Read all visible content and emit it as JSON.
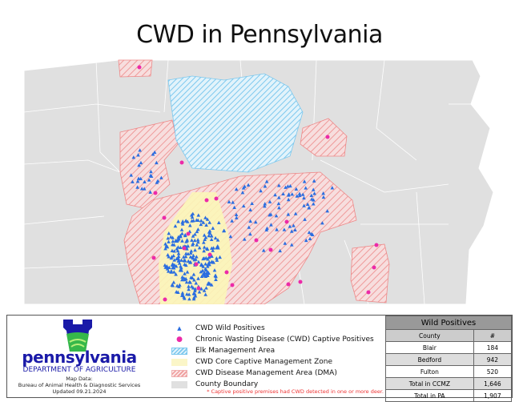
{
  "title": "CWD in Pennsylvania",
  "colors": {
    "state": "#e0e0e0",
    "county_border": "#ffffff",
    "dma": "#f4a6a6",
    "elk": "#88d0f0",
    "ccmz": "#fbf6b8",
    "wild": "#2a6de0",
    "captive": "#ec2aa8"
  },
  "logo": {
    "name": "pennsylvania",
    "dept": "DEPARTMENT OF AGRICULTURE",
    "map_data": "Map Data:",
    "source": "Bureau of Animal Health & Diagnostic Services",
    "updated": "Updated 09.21.2024"
  },
  "legend": [
    {
      "label": "CWD Wild Positives",
      "icon": "triangle"
    },
    {
      "label": "Chronic Wasting Disease (CWD) Captive Positives",
      "icon": "dot"
    },
    {
      "label": "Elk Management Area",
      "icon": "blue-hatch"
    },
    {
      "label": "CWD Core Captive Management Zone",
      "icon": "yellow-fill"
    },
    {
      "label": "CWD Disease Management Area (DMA)",
      "icon": "red-hatch"
    },
    {
      "label": "County Boundary",
      "icon": "gray-fill"
    }
  ],
  "note": "* Captive positive premises had CWD detected in one or more deer.",
  "table": {
    "title": "Wild Positives",
    "headers": [
      "County",
      "#"
    ],
    "rows": [
      [
        "Blair",
        "184"
      ],
      [
        "Bedford",
        "942"
      ],
      [
        "Fulton",
        "520"
      ],
      [
        "Total in CCMZ",
        "1,646"
      ],
      [
        "Total in PA",
        "1,907"
      ]
    ]
  }
}
